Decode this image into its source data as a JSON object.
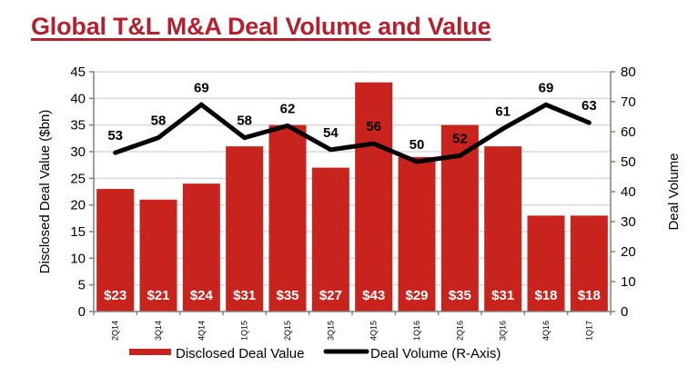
{
  "chart_data": {
    "type": "bar",
    "title": "Global T&L M&A Deal Volume and Value",
    "categories": [
      "2Q14",
      "3Q14",
      "4Q14",
      "1Q15",
      "2Q15",
      "3Q15",
      "4Q15",
      "1Q16",
      "2Q16",
      "3Q16",
      "4Q16",
      "1Q17"
    ],
    "series": [
      {
        "name": "Disclosed Deal Value",
        "type": "bar",
        "axis": "left",
        "color": "#c8231c",
        "values": [
          23,
          21,
          24,
          31,
          35,
          27,
          43,
          29,
          35,
          31,
          18,
          18
        ],
        "labels": [
          "$23",
          "$21",
          "$24",
          "$31",
          "$35",
          "$27",
          "$43",
          "$29",
          "$35",
          "$31",
          "$18",
          "$18"
        ]
      },
      {
        "name": "Deal Volume (R-Axis)",
        "type": "line",
        "axis": "right",
        "color": "#000000",
        "values": [
          53,
          58,
          69,
          58,
          62,
          54,
          56,
          50,
          52,
          61,
          69,
          63
        ],
        "labels": [
          "53",
          "58",
          "69",
          "58",
          "62",
          "54",
          "56",
          "50",
          "52",
          "61",
          "69",
          "63"
        ]
      }
    ],
    "ylabel": "Disclosed Deal Value ($bn)",
    "ylim": [
      0,
      45
    ],
    "yticks": [
      0,
      5,
      10,
      15,
      20,
      25,
      30,
      35,
      40,
      45
    ],
    "y2label": "Deal Volume",
    "y2lim": [
      0,
      80
    ],
    "y2ticks": [
      0,
      10,
      20,
      30,
      40,
      50,
      60,
      70,
      80
    ],
    "xlabel": "",
    "grid": true,
    "legend": "bottom"
  },
  "colors": {
    "title": "#b5202e",
    "bar": "#c8231c",
    "line": "#000000",
    "grid": "#d9d9d9",
    "axis": "#8c8070"
  }
}
